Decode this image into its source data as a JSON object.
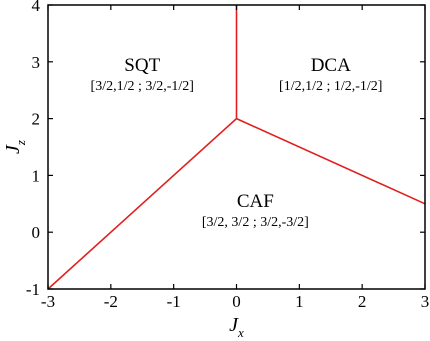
{
  "chart_data": {
    "type": "line",
    "xlabel": {
      "main": "J",
      "sub": "x"
    },
    "ylabel": {
      "main": "J",
      "sub": "z"
    },
    "xlim": [
      -3,
      3
    ],
    "ylim": [
      -1,
      4
    ],
    "x_ticks": [
      -3,
      -2,
      -1,
      0,
      1,
      2,
      3
    ],
    "y_ticks": [
      -1,
      0,
      1,
      2,
      3,
      4
    ],
    "grid": false,
    "line_color": "#e0201e",
    "series": [
      {
        "points": [
          [
            -3,
            -1
          ],
          [
            0,
            2
          ]
        ]
      },
      {
        "points": [
          [
            0,
            2
          ],
          [
            0,
            4
          ]
        ]
      },
      {
        "points": [
          [
            0,
            2
          ],
          [
            3,
            0.5
          ]
        ]
      }
    ],
    "regions": [
      {
        "name": "SQT",
        "config": "[3/2,1/2 ; 3/2,-1/2]",
        "x": -1.5,
        "y": 2.7
      },
      {
        "name": "DCA",
        "config": "[1/2,1/2 ; 1/2,-1/2]",
        "x": 1.5,
        "y": 2.7
      },
      {
        "name": "CAF",
        "config": "[3/2, 3/2 ; 3/2,-3/2]",
        "x": 0.3,
        "y": 0.3
      }
    ]
  }
}
